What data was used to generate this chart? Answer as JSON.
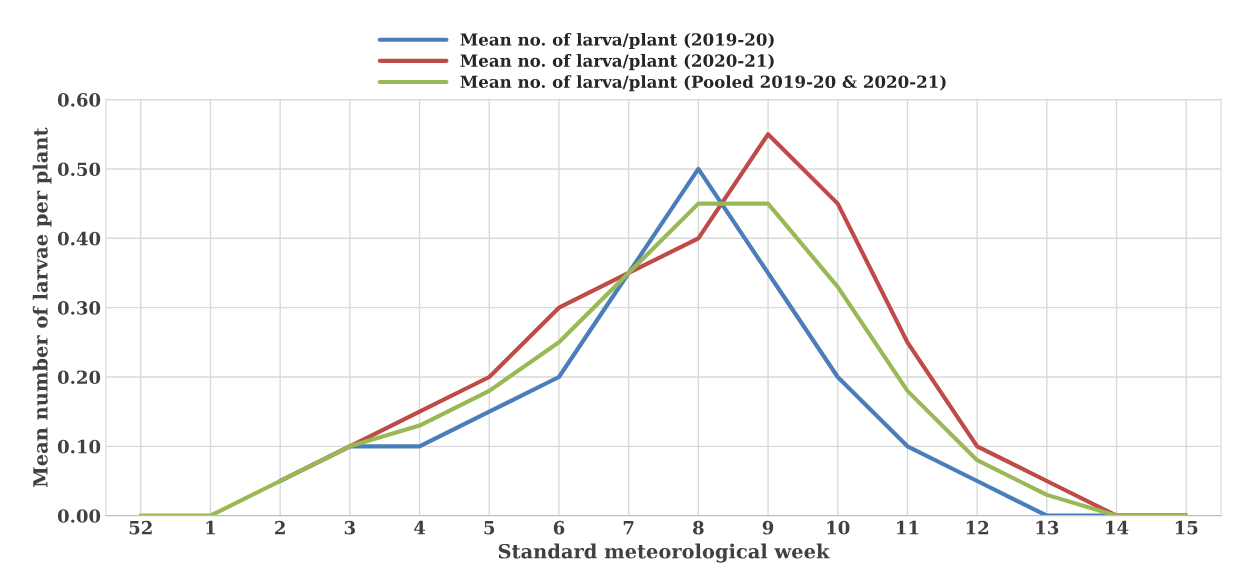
{
  "chart_data": {
    "type": "line",
    "xlabel": "Standard meteorological week",
    "ylabel": "Mean number of larvae per plant",
    "categories": [
      "52",
      "1",
      "2",
      "3",
      "4",
      "5",
      "6",
      "7",
      "8",
      "9",
      "10",
      "11",
      "12",
      "13",
      "14",
      "15"
    ],
    "series": [
      {
        "name": "Mean no. of larva/plant (2019-20)",
        "color": "#4a7ebb",
        "values": [
          null,
          null,
          0.05,
          0.1,
          0.1,
          0.15,
          0.2,
          0.35,
          0.5,
          0.35,
          0.2,
          0.1,
          0.05,
          0,
          0,
          0
        ]
      },
      {
        "name": "Mean no. of larva/plant (2020-21)",
        "color": "#be4b48",
        "values": [
          null,
          null,
          0.05,
          0.1,
          0.15,
          0.2,
          0.3,
          0.35,
          0.4,
          0.55,
          0.45,
          0.25,
          0.1,
          0.05,
          0,
          0
        ]
      },
      {
        "name": "Mean no. of larva/plant (Pooled 2019-20 & 2020-21)",
        "color": "#98b954",
        "values": [
          0,
          0,
          0.05,
          0.1,
          0.13,
          0.18,
          0.25,
          0.35,
          0.45,
          0.45,
          0.33,
          0.18,
          0.08,
          0.03,
          0,
          0
        ]
      }
    ],
    "ylim": [
      0,
      0.6
    ],
    "yticks": [
      {
        "value": 0,
        "label": "0.00"
      },
      {
        "value": 0.1,
        "label": "0.10"
      },
      {
        "value": 0.2,
        "label": "0.20"
      },
      {
        "value": 0.3,
        "label": "0.30"
      },
      {
        "value": 0.4,
        "label": "0.40"
      },
      {
        "value": 0.5,
        "label": "0.50"
      },
      {
        "value": 0.6,
        "label": "0.60"
      }
    ],
    "grid": true,
    "legend": "top",
    "marker": "none",
    "line_style": "solid"
  }
}
